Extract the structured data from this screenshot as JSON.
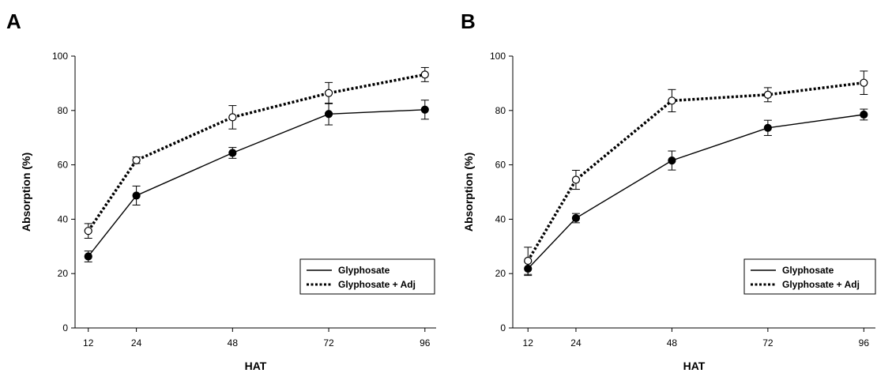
{
  "chart_data": [
    {
      "type": "line",
      "panel_label": "A",
      "x": [
        12,
        24,
        48,
        72,
        96
      ],
      "xticks": [
        12,
        24,
        48,
        72,
        96
      ],
      "xlabel": "HAT",
      "ylabel": "Absorption (%)",
      "ylim": [
        0,
        100
      ],
      "yticks": [
        0,
        20,
        40,
        60,
        80,
        100
      ],
      "grid": false,
      "legend_position": "bottom-right",
      "series": [
        {
          "name": "Glyphosate",
          "line_style": "solid",
          "marker": "filled-circle",
          "values": [
            26.3,
            48.7,
            64.4,
            78.7,
            80.3
          ],
          "errors": [
            2.0,
            3.5,
            2.0,
            4.0,
            3.5
          ]
        },
        {
          "name": "Glyphosate + Adj",
          "line_style": "dotted",
          "marker": "open-circle",
          "values": [
            35.7,
            61.7,
            77.5,
            86.4,
            93.2
          ],
          "errors": [
            2.7,
            1.2,
            4.3,
            3.9,
            2.6
          ]
        }
      ]
    },
    {
      "type": "line",
      "panel_label": "B",
      "x": [
        12,
        24,
        48,
        72,
        96
      ],
      "xticks": [
        12,
        24,
        48,
        72,
        96
      ],
      "xlabel": "HAT",
      "ylabel": "Absorption (%)",
      "ylim": [
        0,
        100
      ],
      "yticks": [
        0,
        20,
        40,
        60,
        80,
        100
      ],
      "grid": false,
      "legend_position": "bottom-right",
      "series": [
        {
          "name": "Glyphosate",
          "line_style": "solid",
          "marker": "filled-circle",
          "values": [
            21.8,
            40.4,
            61.6,
            73.6,
            78.5
          ],
          "errors": [
            2.5,
            1.7,
            3.5,
            2.8,
            2.0
          ]
        },
        {
          "name": "Glyphosate + Adj",
          "line_style": "dotted",
          "marker": "open-circle",
          "values": [
            24.7,
            54.5,
            83.6,
            85.8,
            90.2
          ],
          "errors": [
            5.0,
            3.5,
            4.1,
            2.6,
            4.3
          ]
        }
      ]
    }
  ]
}
